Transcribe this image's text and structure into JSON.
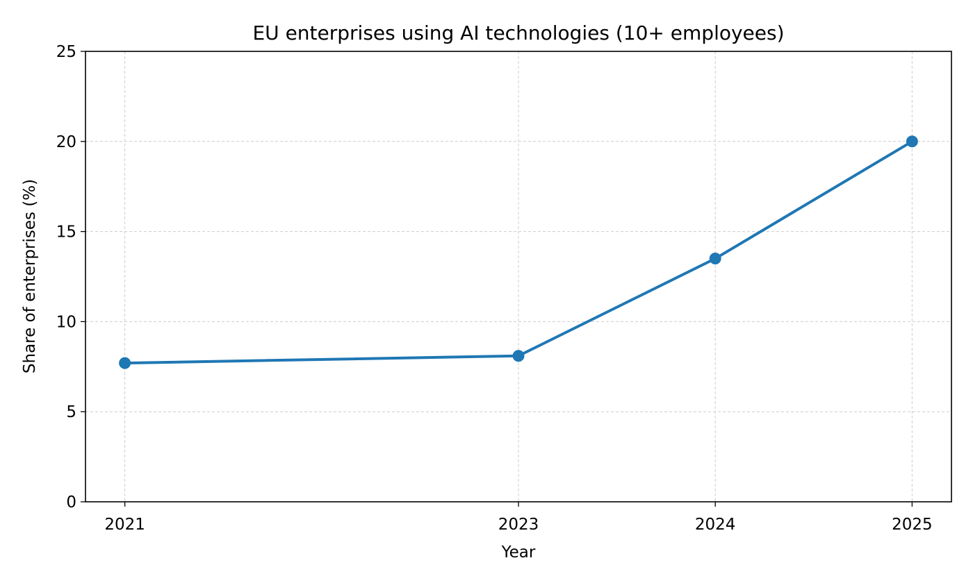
{
  "chart_data": {
    "type": "line",
    "title": "EU enterprises using AI technologies (10+ employees)",
    "xlabel": "Year",
    "ylabel": "Share of enterprises (%)",
    "x": [
      2021,
      2023,
      2024,
      2025
    ],
    "x_tick_labels": [
      "2021",
      "2023",
      "2024",
      "2025"
    ],
    "series": [
      {
        "values": [
          7.7,
          8.1,
          13.5,
          20.0
        ],
        "color": "#1f77b4",
        "marker": "circle"
      }
    ],
    "xlim": [
      2020.8,
      2025.2
    ],
    "ylim": [
      0,
      25
    ],
    "y_ticks": [
      0,
      5,
      10,
      15,
      20,
      25
    ],
    "y_tick_labels": [
      "0",
      "5",
      "10",
      "15",
      "20",
      "25"
    ],
    "grid": true,
    "legend": "none"
  }
}
